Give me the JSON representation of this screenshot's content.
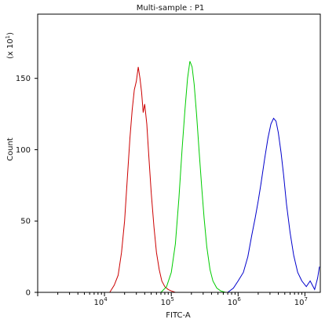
{
  "chart_data": {
    "type": "line",
    "title": "Multi-sample : P1",
    "xlabel": "FITC-A",
    "ylabel": "Count",
    "y_multiplier_label": "(x 10",
    "y_multiplier_exp": "1",
    "y_multiplier_close": ")",
    "x_scale": "log",
    "x_range": [
      1000,
      17000000
    ],
    "y_range": [
      0,
      195
    ],
    "y_ticks": [
      0,
      50,
      100,
      150
    ],
    "y_tick_labels": [
      "0",
      "50",
      "100",
      "150"
    ],
    "x_major_ticks": [
      10000,
      100000,
      1000000,
      10000000
    ],
    "x_tick_labels": [
      {
        "base": "10",
        "exp": "4"
      },
      {
        "base": "10",
        "exp": "5"
      },
      {
        "base": "10",
        "exp": "6"
      },
      {
        "base": "10",
        "exp": "7"
      }
    ],
    "grid": false,
    "series": [
      {
        "color": "#cc0000",
        "x": [
          12000,
          14000,
          16000,
          18000,
          20000,
          22000,
          24000,
          26000,
          28000,
          30000,
          32000,
          34000,
          36000,
          38000,
          40000,
          43000,
          46000,
          50000,
          55000,
          60000,
          66000,
          72000,
          80000,
          90000,
          100000,
          115000,
          130000
        ],
        "y": [
          0,
          5,
          12,
          28,
          50,
          80,
          108,
          128,
          142,
          148,
          158,
          150,
          140,
          126,
          132,
          118,
          96,
          70,
          46,
          28,
          16,
          8,
          4,
          2,
          1,
          0,
          0
        ]
      },
      {
        "color": "#00cc00",
        "x": [
          70000,
          85000,
          100000,
          115000,
          130000,
          145000,
          160000,
          175000,
          190000,
          205000,
          220000,
          240000,
          260000,
          285000,
          310000,
          340000,
          380000,
          420000,
          480000,
          550000,
          650000
        ],
        "y": [
          0,
          4,
          14,
          34,
          66,
          100,
          128,
          150,
          162,
          158,
          146,
          124,
          100,
          74,
          52,
          32,
          16,
          8,
          3,
          1,
          0
        ]
      },
      {
        "color": "#0000cc",
        "x": [
          700000,
          850000,
          1000000,
          1200000,
          1400000,
          1600000,
          1800000,
          2000000,
          2200000,
          2500000,
          2800000,
          3100000,
          3400000,
          3700000,
          4000000,
          4400000,
          4800000,
          5300000,
          6000000,
          6800000,
          7800000,
          9000000,
          10500000,
          12000000,
          14000000,
          15500000,
          16500000
        ],
        "y": [
          0,
          3,
          8,
          14,
          25,
          40,
          52,
          64,
          76,
          94,
          108,
          118,
          122,
          120,
          112,
          98,
          82,
          62,
          42,
          26,
          14,
          8,
          4,
          8,
          2,
          10,
          18
        ]
      }
    ]
  }
}
